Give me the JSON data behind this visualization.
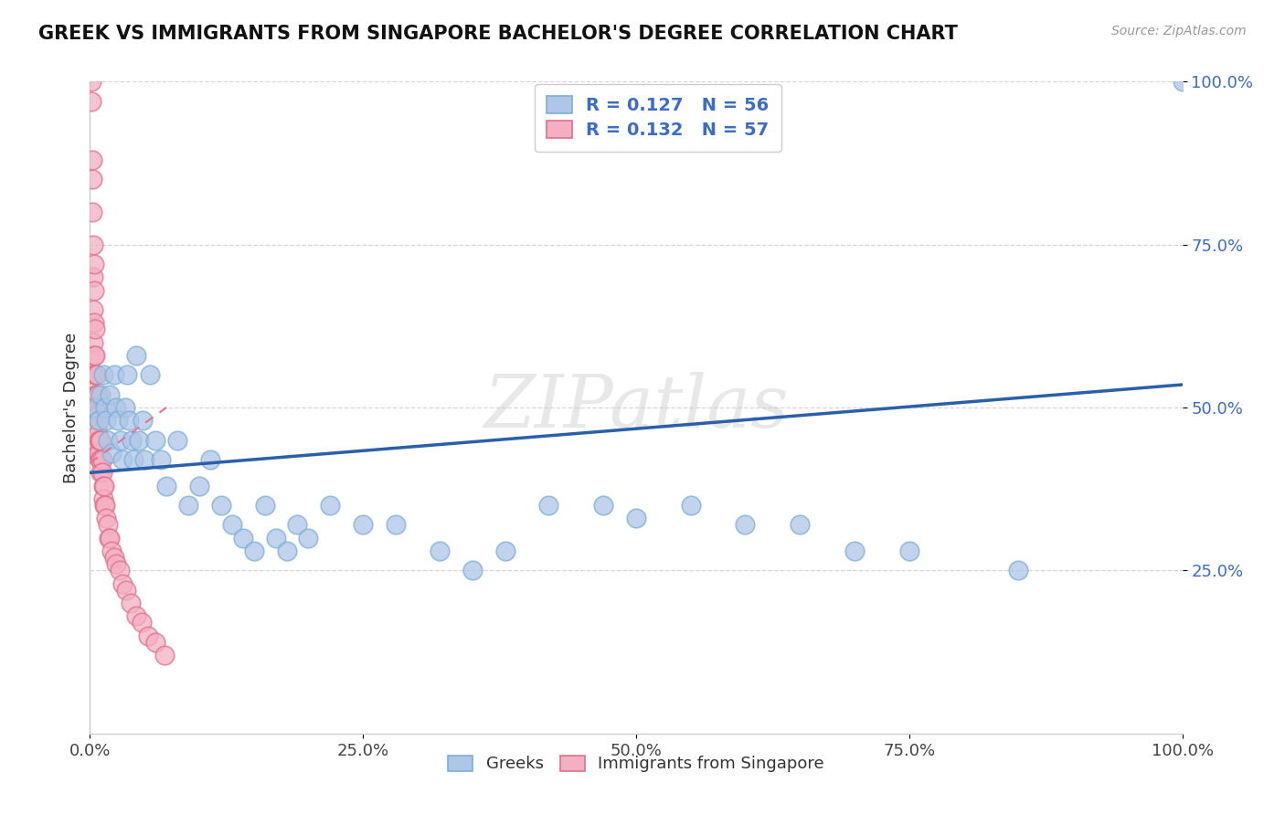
{
  "title": "GREEK VS IMMIGRANTS FROM SINGAPORE BACHELOR'S DEGREE CORRELATION CHART",
  "source": "Source: ZipAtlas.com",
  "ylabel": "Bachelor's Degree",
  "watermark": "ZIPatlas",
  "xlim": [
    0,
    1.0
  ],
  "ylim": [
    0,
    1.0
  ],
  "xticks": [
    0,
    0.25,
    0.5,
    0.75,
    1.0
  ],
  "xtick_labels": [
    "0.0%",
    "25.0%",
    "50.0%",
    "75.0%",
    "100.0%"
  ],
  "yticks": [
    0.25,
    0.5,
    0.75,
    1.0
  ],
  "ytick_labels": [
    "25.0%",
    "50.0%",
    "75.0%",
    "100.0%"
  ],
  "series1_color": "#aec6e8",
  "series1_edge": "#7bafd4",
  "series2_color": "#f4afc3",
  "series2_edge": "#e0708a",
  "trend1_color": "#2a5faa",
  "trend2_color": "#e87090",
  "background_color": "#ffffff",
  "grid_color": "#cccccc",
  "series1_label": "Greeks",
  "series2_label": "Immigrants from Singapore",
  "blue_x": [
    0.005,
    0.008,
    0.01,
    0.012,
    0.014,
    0.015,
    0.016,
    0.018,
    0.02,
    0.022,
    0.024,
    0.026,
    0.028,
    0.03,
    0.032,
    0.034,
    0.036,
    0.038,
    0.04,
    0.042,
    0.045,
    0.048,
    0.05,
    0.055,
    0.06,
    0.065,
    0.07,
    0.08,
    0.09,
    0.1,
    0.11,
    0.12,
    0.13,
    0.14,
    0.15,
    0.16,
    0.17,
    0.18,
    0.19,
    0.2,
    0.22,
    0.25,
    0.28,
    0.32,
    0.35,
    0.38,
    0.42,
    0.47,
    0.5,
    0.55,
    0.6,
    0.65,
    0.7,
    0.75,
    0.85,
    1.0
  ],
  "blue_y": [
    0.5,
    0.48,
    0.52,
    0.55,
    0.5,
    0.48,
    0.45,
    0.52,
    0.43,
    0.55,
    0.5,
    0.48,
    0.45,
    0.42,
    0.5,
    0.55,
    0.48,
    0.45,
    0.42,
    0.58,
    0.45,
    0.48,
    0.42,
    0.55,
    0.45,
    0.42,
    0.38,
    0.45,
    0.35,
    0.38,
    0.42,
    0.35,
    0.32,
    0.3,
    0.28,
    0.35,
    0.3,
    0.28,
    0.32,
    0.3,
    0.35,
    0.32,
    0.32,
    0.28,
    0.25,
    0.28,
    0.35,
    0.35,
    0.33,
    0.35,
    0.32,
    0.32,
    0.28,
    0.28,
    0.25,
    1.0
  ],
  "pink_x": [
    0.001,
    0.001,
    0.002,
    0.002,
    0.002,
    0.003,
    0.003,
    0.003,
    0.003,
    0.004,
    0.004,
    0.004,
    0.004,
    0.004,
    0.005,
    0.005,
    0.005,
    0.005,
    0.006,
    0.006,
    0.006,
    0.006,
    0.007,
    0.007,
    0.007,
    0.007,
    0.008,
    0.008,
    0.008,
    0.009,
    0.009,
    0.01,
    0.01,
    0.01,
    0.011,
    0.011,
    0.012,
    0.012,
    0.013,
    0.013,
    0.014,
    0.015,
    0.016,
    0.017,
    0.018,
    0.02,
    0.022,
    0.024,
    0.027,
    0.03,
    0.033,
    0.037,
    0.042,
    0.047,
    0.053,
    0.06,
    0.068
  ],
  "pink_y": [
    1.0,
    0.97,
    0.88,
    0.85,
    0.8,
    0.75,
    0.7,
    0.65,
    0.6,
    0.72,
    0.68,
    0.63,
    0.58,
    0.55,
    0.62,
    0.58,
    0.55,
    0.52,
    0.55,
    0.52,
    0.5,
    0.47,
    0.52,
    0.49,
    0.46,
    0.43,
    0.48,
    0.45,
    0.43,
    0.45,
    0.42,
    0.45,
    0.42,
    0.4,
    0.42,
    0.4,
    0.38,
    0.36,
    0.38,
    0.35,
    0.35,
    0.33,
    0.32,
    0.3,
    0.3,
    0.28,
    0.27,
    0.26,
    0.25,
    0.23,
    0.22,
    0.2,
    0.18,
    0.17,
    0.15,
    0.14,
    0.12
  ],
  "blue_trend_x": [
    0.0,
    1.0
  ],
  "blue_trend_y": [
    0.4,
    0.535
  ],
  "pink_trend_x": [
    0.0,
    0.07
  ],
  "pink_trend_y": [
    0.415,
    0.5
  ]
}
